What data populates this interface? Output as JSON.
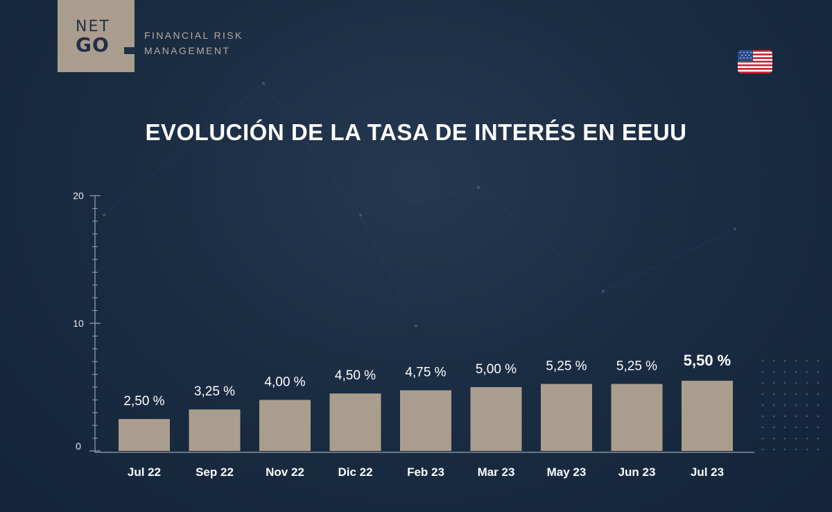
{
  "logo": {
    "line1": "NET",
    "line2": "GO",
    "tagline_line1": "FINANCIAL RISK",
    "tagline_line2": "MANAGEMENT"
  },
  "flag_icon": "us-flag-icon",
  "colors": {
    "background": "#1b2d43",
    "bar": "#ab9d8d",
    "logo_bg": "#ab9d8d",
    "text": "#ffffff",
    "axis": "#9aa3ad"
  },
  "chart_data": {
    "type": "bar",
    "title": "EVOLUCIÓN DE LA TASA DE INTERÉS EN EEUU",
    "categories": [
      "Jul 22",
      "Sep 22",
      "Nov 22",
      "Dic 22",
      "Feb 23",
      "Mar 23",
      "May 23",
      "Jun 23",
      "Jul 23"
    ],
    "values": [
      2.5,
      3.25,
      4.0,
      4.5,
      4.75,
      5.0,
      5.25,
      5.25,
      5.5
    ],
    "data_labels": [
      "2,50 %",
      "3,25 %",
      "4,00 %",
      "4,50 %",
      "4,75 %",
      "5,00 %",
      "5,25 %",
      "5,25 %",
      "5,50 %"
    ],
    "yticks": [
      "0",
      "10",
      "20"
    ],
    "ylim": [
      0,
      20
    ],
    "grid": false,
    "highlight_last": true
  }
}
